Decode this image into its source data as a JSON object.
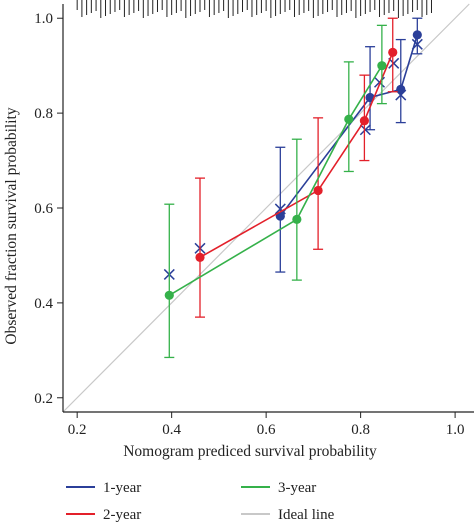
{
  "chart_data": {
    "type": "scatter",
    "xlabel": "Nomogram prediced survival probability",
    "ylabel": "Observed fraction survival probability",
    "xlim": [
      0.17,
      1.04
    ],
    "ylim": [
      0.17,
      1.03
    ],
    "x_ticks": [
      "0.2",
      "0.4",
      "0.6",
      "0.8",
      "1.0"
    ],
    "y_ticks": [
      "0.2",
      "0.4",
      "0.6",
      "0.8",
      "1.0"
    ],
    "grid": false,
    "legend_position": "bottom",
    "legend": [
      {
        "label": "1-year",
        "color": "#2b3f99"
      },
      {
        "label": "2-year",
        "color": "#e3202a"
      },
      {
        "label": "3-year",
        "color": "#35b14a"
      },
      {
        "label": "Ideal line",
        "color": "#c8c8c8"
      }
    ],
    "ideal_line": {
      "x": [
        0.17,
        1.03
      ],
      "y": [
        0.17,
        1.03
      ],
      "color": "#c8c8c8"
    },
    "series": [
      {
        "name": "1-year",
        "color": "#2b3f99",
        "points": [
          {
            "x": 0.63,
            "y": 0.583,
            "lo": 0.465,
            "hi": 0.728
          },
          {
            "x": 0.82,
            "y": 0.833,
            "lo": 0.765,
            "hi": 0.94
          },
          {
            "x": 0.885,
            "y": 0.85,
            "lo": 0.78,
            "hi": 0.955
          },
          {
            "x": 0.92,
            "y": 0.965,
            "lo": 0.925,
            "hi": 1.0
          }
        ],
        "observed_x": [
          {
            "x": 0.395,
            "y": 0.46
          },
          {
            "x": 0.46,
            "y": 0.515
          },
          {
            "x": 0.63,
            "y": 0.598
          },
          {
            "x": 0.81,
            "y": 0.765
          },
          {
            "x": 0.84,
            "y": 0.865
          },
          {
            "x": 0.87,
            "y": 0.905
          },
          {
            "x": 0.885,
            "y": 0.838
          },
          {
            "x": 0.92,
            "y": 0.945
          }
        ]
      },
      {
        "name": "2-year",
        "color": "#e3202a",
        "points": [
          {
            "x": 0.46,
            "y": 0.496,
            "lo": 0.37,
            "hi": 0.663
          },
          {
            "x": 0.71,
            "y": 0.637,
            "lo": 0.513,
            "hi": 0.79
          },
          {
            "x": 0.808,
            "y": 0.784,
            "lo": 0.7,
            "hi": 0.88
          },
          {
            "x": 0.868,
            "y": 0.928,
            "lo": 0.845,
            "hi": 1.0
          }
        ]
      },
      {
        "name": "3-year",
        "color": "#35b14a",
        "points": [
          {
            "x": 0.395,
            "y": 0.416,
            "lo": 0.285,
            "hi": 0.608
          },
          {
            "x": 0.665,
            "y": 0.576,
            "lo": 0.448,
            "hi": 0.745
          },
          {
            "x": 0.775,
            "y": 0.787,
            "lo": 0.677,
            "hi": 0.908
          },
          {
            "x": 0.845,
            "y": 0.9,
            "lo": 0.82,
            "hi": 0.985
          }
        ]
      }
    ],
    "rug_x": [
      0.2,
      0.21,
      0.22,
      0.23,
      0.24,
      0.25,
      0.26,
      0.27,
      0.28,
      0.29,
      0.3,
      0.31,
      0.32,
      0.33,
      0.34,
      0.35,
      0.36,
      0.37,
      0.38,
      0.39,
      0.4,
      0.41,
      0.42,
      0.43,
      0.44,
      0.45,
      0.46,
      0.47,
      0.48,
      0.49,
      0.5,
      0.51,
      0.52,
      0.53,
      0.54,
      0.55,
      0.56,
      0.57,
      0.58,
      0.59,
      0.6,
      0.61,
      0.62,
      0.63,
      0.64,
      0.65,
      0.66,
      0.67,
      0.68,
      0.69,
      0.7,
      0.71,
      0.72,
      0.73,
      0.74,
      0.75,
      0.76,
      0.77,
      0.78,
      0.79,
      0.8,
      0.81,
      0.82,
      0.83,
      0.84,
      0.85,
      0.86,
      0.87,
      0.88,
      0.89,
      0.9,
      0.91,
      0.92,
      0.93,
      0.94,
      0.95
    ]
  }
}
